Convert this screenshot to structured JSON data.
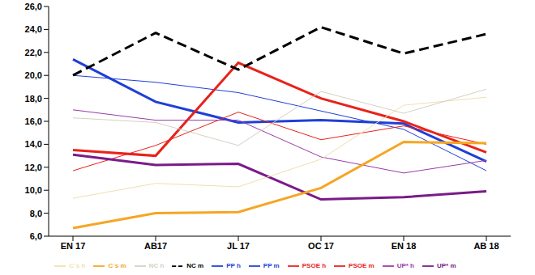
{
  "chart_data": {
    "type": "line",
    "categories": [
      "EN 17",
      "AB17",
      "JL 17",
      "OC 17",
      "EN 18",
      "AB 18"
    ],
    "ylim": [
      6,
      26
    ],
    "yticks": [
      {
        "value": 6,
        "label": "6,0"
      },
      {
        "value": 8,
        "label": "8,0"
      },
      {
        "value": 10,
        "label": "10,0"
      },
      {
        "value": 12,
        "label": "12,0"
      },
      {
        "value": 14,
        "label": "14,0"
      },
      {
        "value": 16,
        "label": "16,0"
      },
      {
        "value": 18,
        "label": "18,0"
      },
      {
        "value": 20,
        "label": "20,0"
      },
      {
        "value": 22,
        "label": "22,0"
      },
      {
        "value": 24,
        "label": "24,0"
      },
      {
        "value": 26,
        "label": "26,0"
      }
    ],
    "grid": false,
    "legend": "bottom",
    "series": [
      {
        "name": "PP h",
        "color": "#1f3fd6",
        "line_style": "thin",
        "values": [
          20.0,
          19.4,
          18.5,
          16.9,
          15.3,
          11.7
        ]
      },
      {
        "name": "PP m",
        "color": "#1f3fd6",
        "line_style": "thick",
        "values": [
          21.4,
          17.7,
          15.9,
          16.1,
          15.8,
          12.5
        ]
      },
      {
        "name": "PSOE h",
        "color": "#e8221a",
        "line_style": "thin",
        "values": [
          11.7,
          13.9,
          16.8,
          14.4,
          15.6,
          14.0
        ]
      },
      {
        "name": "PSOE m",
        "color": "#e8221a",
        "line_style": "thick",
        "values": [
          13.5,
          13.0,
          21.1,
          18.0,
          16.0,
          13.3
        ]
      },
      {
        "name": "UP* m",
        "color": "#7b1a8a",
        "line_style": "thick",
        "values": [
          13.1,
          12.2,
          12.3,
          9.2,
          9.4,
          9.9
        ]
      },
      {
        "name": "UP* h",
        "color": "#9a3aa8",
        "line_style": "thin",
        "values": [
          17.0,
          16.1,
          16.1,
          12.9,
          11.5,
          12.6
        ]
      },
      {
        "name": "C´s h",
        "color": "#f0dfae",
        "line_style": "thin",
        "values": [
          9.3,
          10.6,
          10.3,
          12.7,
          17.4,
          18.1
        ]
      },
      {
        "name": "C´s m",
        "color": "#f5a623",
        "line_style": "thick",
        "values": [
          6.7,
          8.0,
          8.1,
          10.2,
          14.2,
          14.1
        ]
      },
      {
        "name": "NC h",
        "color": "#d6d0c2",
        "line_style": "thin",
        "values": [
          16.3,
          15.9,
          13.9,
          18.6,
          16.7,
          18.8
        ]
      },
      {
        "name": "NC m",
        "color": "#000000",
        "line_style": "dashed",
        "values": [
          20.0,
          23.7,
          20.5,
          24.2,
          21.9,
          23.6
        ]
      }
    ]
  }
}
